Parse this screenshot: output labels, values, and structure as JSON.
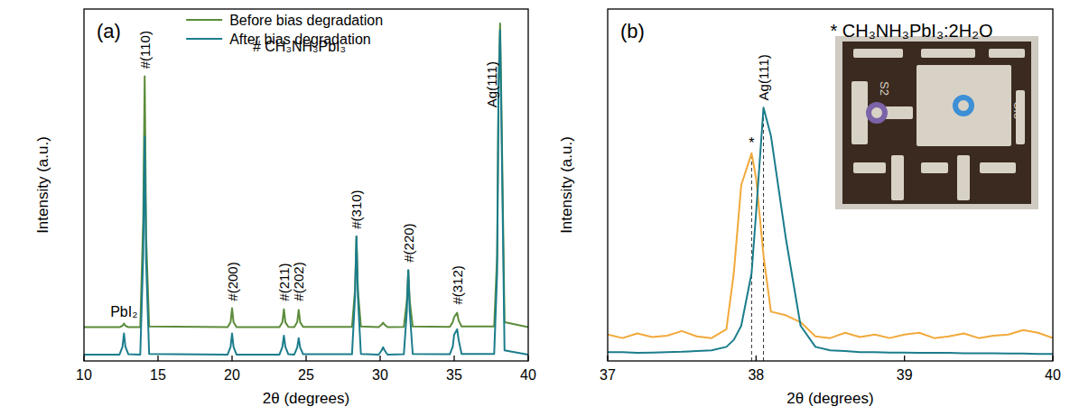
{
  "chart_data": [
    {
      "type": "line",
      "title": "(a)",
      "x_label": "2θ (degrees)",
      "y_label": "Intensity (a.u.)",
      "x": [
        10,
        12.4,
        12.6,
        12.7,
        12.8,
        13.0,
        13.8,
        14.0,
        14.1,
        14.2,
        14.4,
        19.7,
        19.9,
        20.0,
        20.1,
        20.3,
        23.2,
        23.4,
        23.5,
        23.6,
        23.8,
        24.2,
        24.4,
        24.5,
        24.6,
        24.8,
        28.1,
        28.3,
        28.4,
        28.5,
        28.7,
        29.9,
        30.1,
        30.2,
        30.3,
        30.5,
        31.6,
        31.8,
        31.9,
        32.0,
        32.2,
        34.7,
        34.9,
        35.0,
        35.2,
        35.3,
        35.5,
        37.7,
        37.9,
        38.0,
        38.1,
        38.2,
        38.4,
        40
      ],
      "series": [
        {
          "name": "Before bias degradation",
          "color": "#5b8c3a",
          "values": [
            9.6,
            9.6,
            10.0,
            10.6,
            10.0,
            9.6,
            9.6,
            40,
            80.9,
            35,
            9.8,
            9.6,
            11,
            15,
            11,
            9.6,
            9.6,
            11,
            14.7,
            11,
            9.7,
            9.6,
            11,
            14.5,
            11,
            9.7,
            9.7,
            20,
            35.4,
            20,
            9.8,
            9.6,
            10.3,
            10.9,
            10.3,
            9.6,
            9.7,
            17,
            25.8,
            17,
            9.8,
            9.7,
            11,
            12.5,
            13.7,
            11.5,
            9.8,
            9.8,
            30,
            80,
            95.9,
            70,
            11,
            9.6
          ]
        },
        {
          "name": "After bias degradation",
          "color": "#1b7d8c",
          "values": [
            1.8,
            1.8,
            4,
            7.8,
            4,
            1.9,
            1.8,
            30,
            63.8,
            28,
            2,
            1.8,
            4,
            7.8,
            4,
            1.8,
            1.8,
            4,
            7.2,
            4,
            1.9,
            1.8,
            3.8,
            6.5,
            3.8,
            1.9,
            1.9,
            18,
            35.4,
            18,
            2,
            1.8,
            3,
            3.9,
            3,
            1.8,
            1.9,
            14,
            25.8,
            14,
            2,
            1.9,
            4,
            7.5,
            9,
            6,
            2,
            2,
            25,
            78,
            94,
            65,
            3,
            1.8
          ]
        }
      ],
      "xlim": [
        10,
        40
      ],
      "xticks": [
        10,
        15,
        20,
        25,
        30,
        35,
        40
      ],
      "ylim": [
        0,
        100
      ],
      "tick_labels": "x",
      "legend": "upper center",
      "peak_labels": [
        {
          "text": "#(110)",
          "x": 14.1,
          "y": 83
        },
        {
          "text": "#(200)",
          "x": 20.0,
          "y": 17
        },
        {
          "text": "#(211)",
          "x": 23.5,
          "y": 17
        },
        {
          "text": "#(202)",
          "x": 24.5,
          "y": 17
        },
        {
          "text": "#(310)",
          "x": 28.4,
          "y": 37.5
        },
        {
          "text": "#(220)",
          "x": 31.9,
          "y": 28
        },
        {
          "text": "#(312)",
          "x": 35.2,
          "y": 16
        },
        {
          "text": "Ag(111)",
          "x": 37.55,
          "y": 72
        }
      ],
      "annotations": [
        {
          "text": "PbI₂",
          "x": 12.7,
          "y": 12.5
        },
        {
          "text": "# CH₃NH₃PbI₃",
          "x": 21.4,
          "y": 88
        }
      ]
    },
    {
      "type": "line",
      "title": "(b)",
      "x_label": "2θ (degrees)",
      "y_label": "Intensity (a.u.)",
      "x": [
        37,
        37.1,
        37.2,
        37.3,
        37.4,
        37.5,
        37.6,
        37.7,
        37.8,
        37.85,
        37.9,
        37.97,
        38.0,
        38.05,
        38.1,
        38.2,
        38.3,
        38.4,
        38.5,
        38.6,
        38.7,
        38.8,
        38.9,
        39.0,
        39.1,
        39.2,
        39.3,
        39.4,
        39.5,
        39.6,
        39.7,
        39.8,
        39.9,
        40
      ],
      "series": [
        {
          "color": "#f2a93b",
          "values": [
            7.5,
            6.5,
            7.8,
            6.8,
            7.2,
            8.5,
            7.0,
            6.5,
            9,
            25,
            50,
            59,
            52,
            30,
            14,
            13,
            11,
            7,
            6.5,
            8,
            6.8,
            7.5,
            6.5,
            7.5,
            8,
            6.5,
            7,
            7.8,
            6.5,
            7.2,
            7.5,
            8.8,
            8,
            6.5
          ]
        },
        {
          "color": "#1b7d8c",
          "values": [
            2.5,
            2.5,
            2.3,
            2.4,
            2.5,
            2.6,
            2.8,
            3,
            4,
            6,
            10,
            25,
            42,
            72,
            64,
            35,
            10,
            4,
            3,
            2.8,
            2.5,
            2.5,
            2.4,
            2.4,
            2.3,
            2.3,
            2.3,
            2.2,
            2.2,
            2.2,
            2.1,
            2.1,
            2.0,
            2.0
          ]
        }
      ],
      "xlim": [
        37,
        40
      ],
      "xticks": [
        37,
        38,
        39,
        40
      ],
      "ylim": [
        0,
        100
      ],
      "tick_labels": "x",
      "reference_lines": [
        {
          "x": 37.97,
          "y": 59
        },
        {
          "x": 38.05,
          "y": 72
        }
      ],
      "peak_labels": [
        {
          "text": "Ag(111)",
          "x": 38.05,
          "y": 74
        }
      ],
      "annotations": [
        {
          "text": "*",
          "x": 37.97,
          "y": 60.5
        },
        {
          "text": "* CH₃NH₃PbI₃:2H₂O",
          "x": 38.5,
          "y": 92
        }
      ],
      "inset": {
        "labels": [
          "S2",
          "CI3"
        ],
        "marker_colors": [
          "#7b63a8",
          "#3d8fd6"
        ]
      }
    }
  ]
}
